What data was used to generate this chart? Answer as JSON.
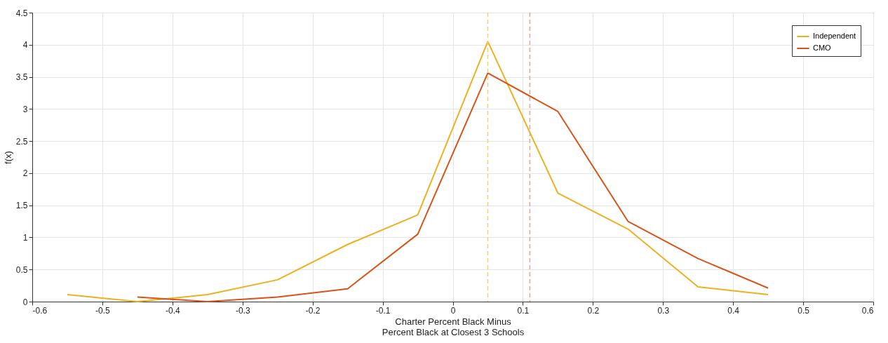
{
  "chart_data": {
    "type": "line",
    "xlabel": "Charter Percent Black Minus\nPercent Black at Closest 3 Schools",
    "ylabel": "f(x)",
    "series": [
      {
        "name": "Independent",
        "color": "#edb120",
        "x": [
          -0.55,
          -0.45,
          -0.35,
          -0.25,
          -0.15,
          -0.05,
          0.05,
          0.15,
          0.25,
          0.35,
          0.45
        ],
        "values": [
          0.11,
          0.0,
          0.11,
          0.34,
          0.89,
          1.35,
          4.05,
          1.69,
          1.13,
          0.23,
          0.11
        ]
      },
      {
        "name": "CMO",
        "color": "#d95319",
        "x": [
          -0.45,
          -0.35,
          -0.25,
          -0.15,
          -0.05,
          0.05,
          0.15,
          0.25,
          0.35,
          0.45
        ],
        "values": [
          0.07,
          0.0,
          0.07,
          0.2,
          1.05,
          3.56,
          2.96,
          1.25,
          0.67,
          0.21
        ]
      }
    ],
    "ref_lines": [
      {
        "axis": "x",
        "value": 0.05,
        "color": "#f3cf7c",
        "line_style": "dashed"
      },
      {
        "axis": "x",
        "value": 0.11,
        "color": "#e6a58a",
        "line_style": "dashed"
      }
    ],
    "xlim": [
      -0.6,
      0.6
    ],
    "xticks": [
      -0.6,
      -0.5,
      -0.4,
      -0.3,
      -0.2,
      -0.1,
      0,
      0.1,
      0.2,
      0.3,
      0.4,
      0.5,
      0.6
    ],
    "ylim": [
      0,
      4.5
    ],
    "yticks": [
      0,
      0.5,
      1,
      1.5,
      2,
      2.5,
      3,
      3.5,
      4,
      4.5
    ],
    "grid": true,
    "legend": "top right",
    "marker": "none",
    "line_style": "solid"
  }
}
